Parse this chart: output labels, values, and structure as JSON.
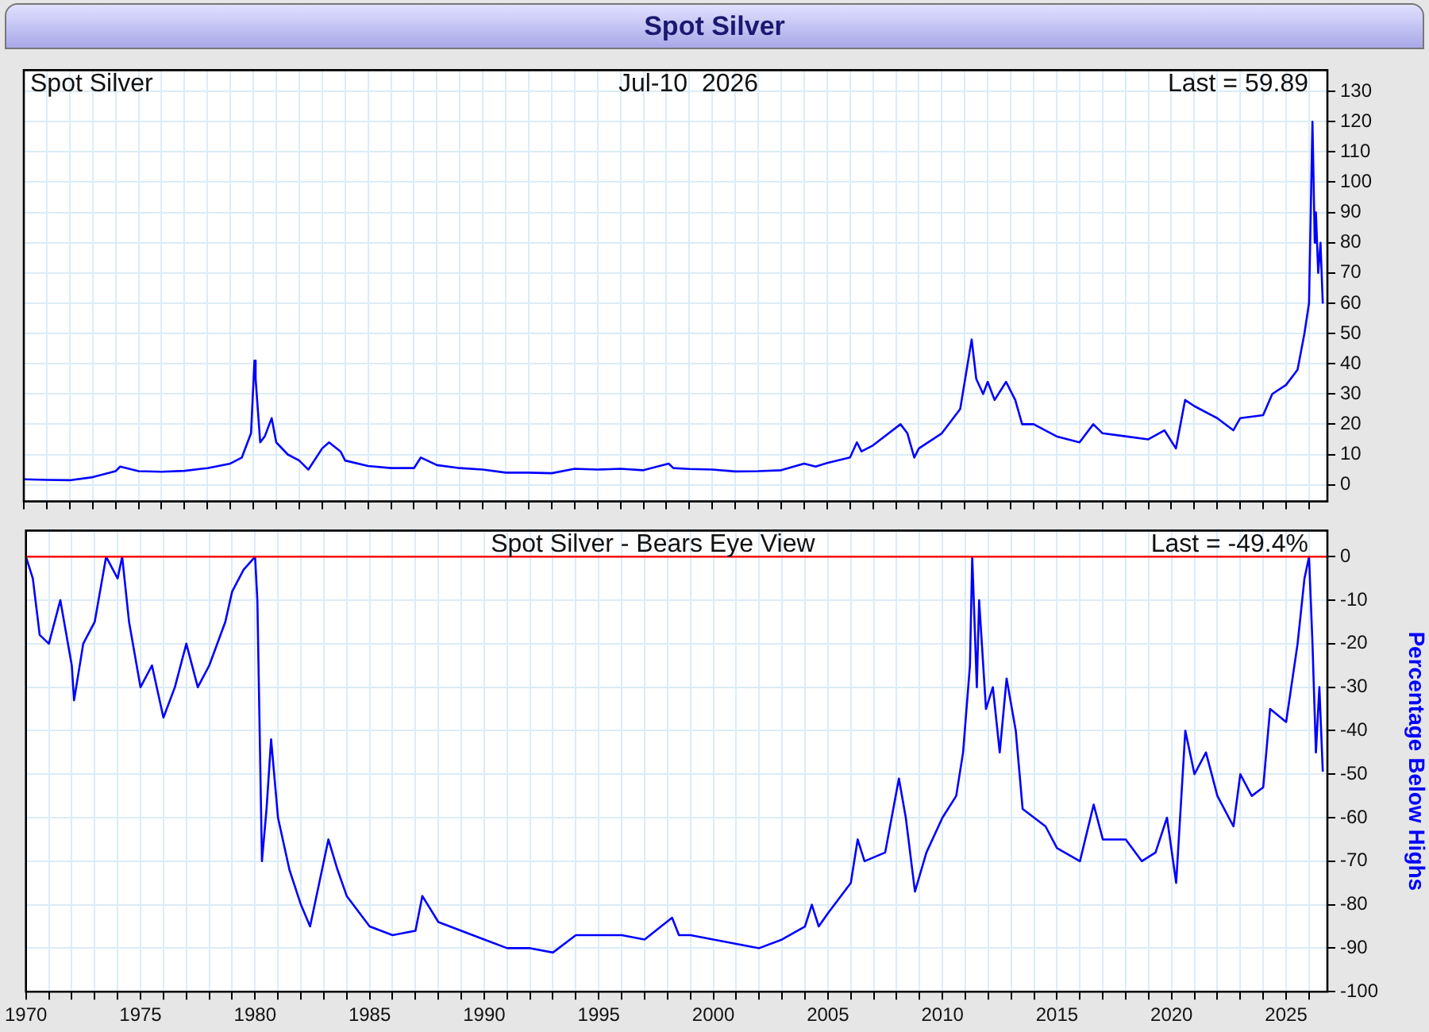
{
  "chart_data": [
    {
      "type": "line",
      "title": "Spot Silver",
      "annotations": [
        "Spot Silver",
        "Jul-10  2026",
        "Last = 59.89"
      ],
      "xlim": [
        1970,
        2026.8
      ],
      "xticks": [
        1970,
        {
          "value": 1971,
          "label": null
        },
        {
          "value": 1972,
          "label": null
        },
        {
          "value": 1973,
          "label": null
        },
        {
          "value": 1974,
          "label": null
        },
        1975,
        {
          "value": 1976,
          "label": null
        },
        {
          "value": 1977,
          "label": null
        },
        {
          "value": 1978,
          "label": null
        },
        {
          "value": 1979,
          "label": null
        },
        1980,
        {
          "value": 1981,
          "label": null
        },
        {
          "value": 1982,
          "label": null
        },
        {
          "value": 1983,
          "label": null
        },
        {
          "value": 1984,
          "label": null
        },
        1985,
        {
          "value": 1986,
          "label": null
        },
        {
          "value": 1987,
          "label": null
        },
        {
          "value": 1988,
          "label": null
        },
        {
          "value": 1989,
          "label": null
        },
        1990,
        {
          "value": 1991,
          "label": null
        },
        {
          "value": 1992,
          "label": null
        },
        {
          "value": 1993,
          "label": null
        },
        {
          "value": 1994,
          "label": null
        },
        1995,
        {
          "value": 1996,
          "label": null
        },
        {
          "value": 1997,
          "label": null
        },
        {
          "value": 1998,
          "label": null
        },
        {
          "value": 1999,
          "label": null
        },
        2000,
        {
          "value": 2001,
          "label": null
        },
        {
          "value": 2002,
          "label": null
        },
        {
          "value": 2003,
          "label": null
        },
        {
          "value": 2004,
          "label": null
        },
        2005,
        {
          "value": 2006,
          "label": null
        },
        {
          "value": 2007,
          "label": null
        },
        {
          "value": 2008,
          "label": null
        },
        {
          "value": 2009,
          "label": null
        },
        2010,
        {
          "value": 2011,
          "label": null
        },
        {
          "value": 2012,
          "label": null
        },
        {
          "value": 2013,
          "label": null
        },
        {
          "value": 2014,
          "label": null
        },
        2015,
        {
          "value": 2016,
          "label": null
        },
        {
          "value": 2017,
          "label": null
        },
        {
          "value": 2018,
          "label": null
        },
        {
          "value": 2019,
          "label": null
        },
        2020,
        {
          "value": 2021,
          "label": null
        },
        {
          "value": 2022,
          "label": null
        },
        {
          "value": 2023,
          "label": null
        },
        {
          "value": 2024,
          "label": null
        },
        2025,
        {
          "value": 2026,
          "label": null
        }
      ],
      "ylim": [
        -5.5,
        137
      ],
      "yticks": [
        0,
        10,
        20,
        30,
        40,
        50,
        60,
        70,
        80,
        90,
        100,
        110,
        120,
        130
      ],
      "grid": true,
      "tick_labels": "y",
      "series": [
        {
          "color": "#0000ff",
          "x": [
            1970,
            1971,
            1972,
            1973,
            1974,
            1974.2,
            1975,
            1976,
            1977,
            1978,
            1979,
            1979.5,
            1979.9,
            1980.05,
            1980.1,
            1980.3,
            1980.5,
            1980.8,
            1981,
            1981.5,
            1982,
            1982.4,
            1983,
            1983.3,
            1983.8,
            1984,
            1985,
            1986,
            1987,
            1987.3,
            1988,
            1989,
            1990,
            1991,
            1992,
            1993,
            1994,
            1995,
            1996,
            1997,
            1998.1,
            1998.3,
            1999,
            2000,
            2001,
            2002,
            2003,
            2004,
            2004.5,
            2005,
            2006,
            2006.3,
            2006.5,
            2007,
            2008.2,
            2008.5,
            2008.8,
            2009,
            2010,
            2010.8,
            2011.3,
            2011.5,
            2011.8,
            2012,
            2012.3,
            2012.8,
            2013.2,
            2013.5,
            2014,
            2015,
            2016,
            2016.6,
            2017,
            2018,
            2019,
            2019.7,
            2020.2,
            2020.6,
            2021,
            2022,
            2022.7,
            2023,
            2024,
            2024.4,
            2025,
            2025.5,
            2025.8,
            2026,
            2026.15,
            2026.25,
            2026.3,
            2026.4,
            2026.5,
            2026.6
          ],
          "values": [
            1.8,
            1.6,
            1.5,
            2.5,
            4.5,
            6,
            4.5,
            4.3,
            4.6,
            5.5,
            7,
            9,
            17,
            41,
            35,
            14,
            16,
            22,
            14,
            10,
            8,
            5,
            12,
            14,
            11,
            8,
            6.2,
            5.5,
            5.5,
            9,
            6.5,
            5.5,
            5,
            4,
            4,
            3.8,
            5.3,
            5,
            5.3,
            4.8,
            7,
            5.5,
            5.2,
            5,
            4.4,
            4.5,
            4.8,
            7,
            6,
            7.2,
            9,
            14,
            11,
            13,
            20,
            17,
            9,
            12,
            17,
            25,
            48,
            35,
            30,
            34,
            28,
            34,
            28,
            20,
            20,
            16,
            14,
            20,
            17,
            16,
            15,
            18,
            12,
            28,
            26,
            22,
            18,
            22,
            23,
            30,
            33,
            38,
            50,
            60,
            120,
            80,
            90,
            70,
            80,
            59.89
          ]
        }
      ]
    },
    {
      "type": "line",
      "title": "Spot Silver - Bears Eye View",
      "annotations": [
        "Last = -49.4%"
      ],
      "ylabel": "Percentage Below Highs",
      "xlim": [
        1970,
        2026.8
      ],
      "xticks": [
        1970,
        {
          "value": 1971,
          "label": null
        },
        {
          "value": 1972,
          "label": null
        },
        {
          "value": 1973,
          "label": null
        },
        {
          "value": 1974,
          "label": null
        },
        1975,
        {
          "value": 1976,
          "label": null
        },
        {
          "value": 1977,
          "label": null
        },
        {
          "value": 1978,
          "label": null
        },
        {
          "value": 1979,
          "label": null
        },
        1980,
        {
          "value": 1981,
          "label": null
        },
        {
          "value": 1982,
          "label": null
        },
        {
          "value": 1983,
          "label": null
        },
        {
          "value": 1984,
          "label": null
        },
        1985,
        {
          "value": 1986,
          "label": null
        },
        {
          "value": 1987,
          "label": null
        },
        {
          "value": 1988,
          "label": null
        },
        {
          "value": 1989,
          "label": null
        },
        1990,
        {
          "value": 1991,
          "label": null
        },
        {
          "value": 1992,
          "label": null
        },
        {
          "value": 1993,
          "label": null
        },
        {
          "value": 1994,
          "label": null
        },
        1995,
        {
          "value": 1996,
          "label": null
        },
        {
          "value": 1997,
          "label": null
        },
        {
          "value": 1998,
          "label": null
        },
        {
          "value": 1999,
          "label": null
        },
        2000,
        {
          "value": 2001,
          "label": null
        },
        {
          "value": 2002,
          "label": null
        },
        {
          "value": 2003,
          "label": null
        },
        {
          "value": 2004,
          "label": null
        },
        2005,
        {
          "value": 2006,
          "label": null
        },
        {
          "value": 2007,
          "label": null
        },
        {
          "value": 2008,
          "label": null
        },
        {
          "value": 2009,
          "label": null
        },
        2010,
        {
          "value": 2011,
          "label": null
        },
        {
          "value": 2012,
          "label": null
        },
        {
          "value": 2013,
          "label": null
        },
        {
          "value": 2014,
          "label": null
        },
        2015,
        {
          "value": 2016,
          "label": null
        },
        {
          "value": 2017,
          "label": null
        },
        {
          "value": 2018,
          "label": null
        },
        {
          "value": 2019,
          "label": null
        },
        2020,
        {
          "value": 2021,
          "label": null
        },
        {
          "value": 2022,
          "label": null
        },
        {
          "value": 2023,
          "label": null
        },
        {
          "value": 2024,
          "label": null
        },
        2025,
        {
          "value": 2026,
          "label": null
        }
      ],
      "ylim": [
        -100,
        6
      ],
      "yticks": [
        0,
        -10,
        -20,
        -30,
        -40,
        -50,
        -60,
        -70,
        -80,
        -90,
        -100
      ],
      "grid": true,
      "ref_lines": [
        {
          "axis": "y",
          "value": 0,
          "label": null,
          "color": "#ff0000"
        }
      ],
      "series": [
        {
          "color": "#0000ff",
          "x": [
            1970,
            1970.3,
            1970.6,
            1971,
            1971.5,
            1972,
            1972.1,
            1972.5,
            1973,
            1973.5,
            1974,
            1974.2,
            1974.5,
            1975,
            1975.5,
            1976,
            1976.5,
            1977,
            1977.5,
            1978,
            1978.7,
            1979,
            1979.5,
            1980,
            1980.1,
            1980.3,
            1980.5,
            1980.7,
            1981,
            1981.5,
            1982,
            1982.4,
            1982.8,
            1983.2,
            1983.6,
            1984,
            1985,
            1986,
            1987,
            1987.3,
            1988,
            1989,
            1990,
            1991,
            1992,
            1993,
            1994,
            1995,
            1996,
            1997,
            1998.2,
            1998.5,
            1999,
            2000,
            2001,
            2002,
            2003,
            2004,
            2004.3,
            2004.6,
            2005,
            2006,
            2006.3,
            2006.6,
            2007.5,
            2008.1,
            2008.4,
            2008.8,
            2009.3,
            2010,
            2010.6,
            2010.9,
            2011.2,
            2011.3,
            2011.5,
            2011.6,
            2011.9,
            2012.2,
            2012.5,
            2012.8,
            2013.2,
            2013.5,
            2014,
            2014.5,
            2015,
            2016,
            2016.6,
            2017,
            2018,
            2018.7,
            2019.3,
            2019.8,
            2020.2,
            2020.6,
            2021,
            2021.5,
            2022,
            2022.7,
            2023,
            2023.5,
            2024,
            2024.3,
            2025,
            2025.5,
            2025.8,
            2026,
            2026.15,
            2026.3,
            2026.45,
            2026.6
          ],
          "values": [
            0,
            -5,
            -18,
            -20,
            -10,
            -25,
            -33,
            -20,
            -15,
            0,
            -5,
            0,
            -15,
            -30,
            -25,
            -37,
            -30,
            -20,
            -30,
            -25,
            -15,
            -8,
            -3,
            0,
            -10,
            -70,
            -58,
            -42,
            -60,
            -72,
            -80,
            -85,
            -75,
            -65,
            -72,
            -78,
            -85,
            -87,
            -86,
            -78,
            -84,
            -86,
            -88,
            -90,
            -90,
            -91,
            -87,
            -87,
            -87,
            -88,
            -83,
            -87,
            -87,
            -88,
            -89,
            -90,
            -88,
            -85,
            -80,
            -85,
            -82,
            -75,
            -65,
            -70,
            -68,
            -51,
            -60,
            -77,
            -68,
            -60,
            -55,
            -45,
            -25,
            0,
            -30,
            -10,
            -35,
            -30,
            -45,
            -28,
            -40,
            -58,
            -60,
            -62,
            -67,
            -70,
            -57,
            -65,
            -65,
            -70,
            -68,
            -60,
            -75,
            -40,
            -50,
            -45,
            -55,
            -62,
            -50,
            -55,
            -53,
            -35,
            -38,
            -20,
            -5,
            0,
            -20,
            -45,
            -30,
            -49.4
          ]
        }
      ]
    }
  ]
}
